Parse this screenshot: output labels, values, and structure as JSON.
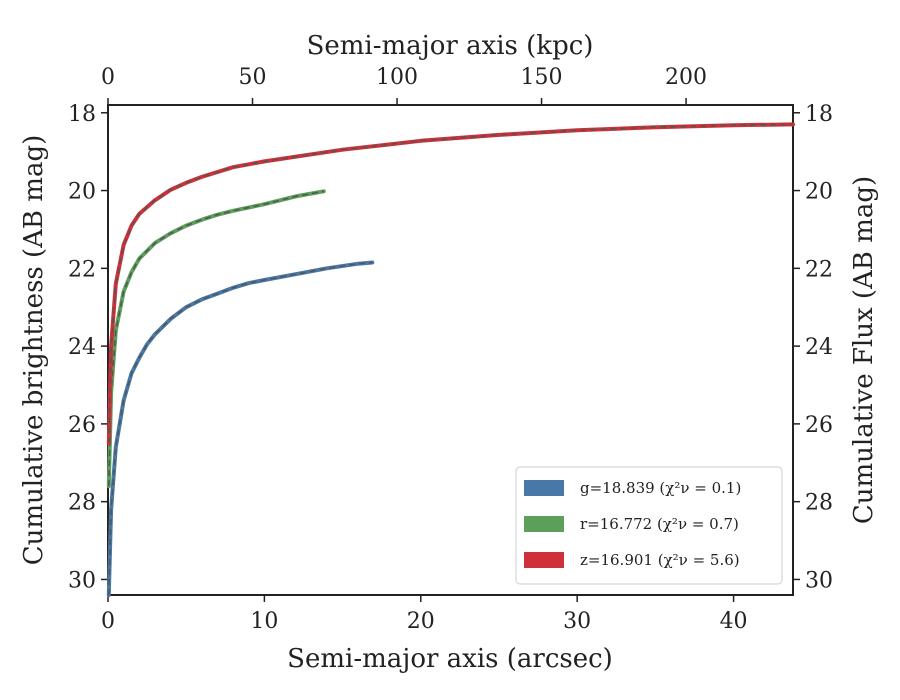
{
  "chart_data": {
    "type": "line",
    "xlabel": "Semi-major axis (arcsec)",
    "ylabel": "Cumulative brightness (AB mag)",
    "ylabel_right": "Cumulative Flux (AB mag)",
    "xlabel_top": "Semi-major axis (kpc)",
    "xlim": [
      0,
      43.8
    ],
    "ylim": [
      30.4,
      17.8
    ],
    "xlim_top": [
      0,
      237
    ],
    "x_ticks": [
      0,
      10,
      20,
      30,
      40
    ],
    "y_ticks": [
      18,
      20,
      22,
      24,
      26,
      28,
      30
    ],
    "x_top_ticks": [
      0,
      50,
      100,
      150,
      200
    ],
    "grid": false,
    "legend_position": "lower-right",
    "series": [
      {
        "name": "g=18.839 (χ²ν = 0.1)",
        "color": "#4878a8",
        "model_style": "dashed",
        "x": [
          0.05,
          0.2,
          0.5,
          1,
          1.5,
          2,
          2.5,
          3,
          4,
          5,
          6,
          7,
          8,
          9,
          10,
          12,
          14,
          16,
          16.9
        ],
        "y": [
          30.4,
          28.2,
          26.6,
          25.4,
          24.7,
          24.3,
          23.95,
          23.7,
          23.3,
          23.0,
          22.8,
          22.65,
          22.5,
          22.38,
          22.3,
          22.15,
          22.0,
          21.88,
          21.85
        ]
      },
      {
        "name": "r=16.772 (χ²ν = 0.7)",
        "color": "#5aa05a",
        "model_style": "dashed",
        "x": [
          0.05,
          0.2,
          0.5,
          1,
          1.5,
          2,
          3,
          4,
          5,
          6,
          7,
          8,
          10,
          12,
          13.8
        ],
        "y": [
          27.6,
          25.2,
          23.6,
          22.6,
          22.1,
          21.75,
          21.35,
          21.1,
          20.9,
          20.75,
          20.62,
          20.52,
          20.35,
          20.15,
          20.02
        ]
      },
      {
        "name": "z=16.901 (χ²ν = 5.6)",
        "color": "#d03038",
        "model_style": "dashed",
        "x": [
          0.05,
          0.2,
          0.5,
          1,
          1.5,
          2,
          3,
          4,
          5,
          6,
          8,
          10,
          15,
          20,
          25,
          30,
          35,
          40,
          43.8
        ],
        "y": [
          26.5,
          24.0,
          22.4,
          21.4,
          20.9,
          20.6,
          20.25,
          19.98,
          19.8,
          19.65,
          19.4,
          19.25,
          18.95,
          18.72,
          18.57,
          18.45,
          18.37,
          18.32,
          18.3
        ]
      }
    ]
  }
}
